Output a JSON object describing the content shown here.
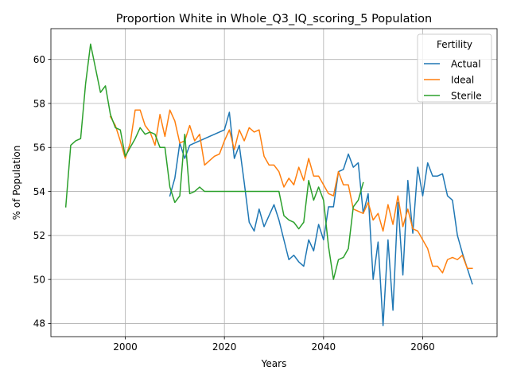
{
  "chart_data": {
    "type": "line",
    "title": "Proportion White in Whole_Q3_IQ_scoring_5 Population",
    "xlabel": "Years",
    "ylabel": "% of Population",
    "xlim": [
      1985,
      2075
    ],
    "ylim": [
      47.4,
      61.4
    ],
    "xticks": [
      2000,
      2020,
      2040,
      2060
    ],
    "yticks": [
      48,
      50,
      52,
      54,
      56,
      58,
      60
    ],
    "grid": true,
    "legend": {
      "title": "Fertility",
      "placement": "top-right"
    },
    "series": [
      {
        "name": "Actual",
        "color": "#1f77b4",
        "x": [
          2009,
          2010,
          2011,
          2012,
          2013,
          2014,
          2015,
          2016,
          2017,
          2018,
          2019,
          2020,
          2021,
          2022,
          2023,
          2024,
          2025,
          2026,
          2027,
          2028,
          2029,
          2030,
          2031,
          2032,
          2033,
          2034,
          2035,
          2036,
          2037,
          2038,
          2039,
          2040,
          2041,
          2042,
          2043,
          2044,
          2045,
          2046,
          2047,
          2048,
          2049,
          2050,
          2051,
          2052,
          2053,
          2054,
          2055,
          2056,
          2057,
          2058,
          2059,
          2060,
          2061,
          2062,
          2063,
          2064,
          2065,
          2066,
          2067,
          2068,
          2069,
          2070
        ],
        "values": [
          53.8,
          54.6,
          56.2,
          55.5,
          56.1,
          56.2,
          56.3,
          56.4,
          56.5,
          56.6,
          56.7,
          56.8,
          57.6,
          55.5,
          56.1,
          54.4,
          52.6,
          52.2,
          53.2,
          52.4,
          52.9,
          53.4,
          52.7,
          51.8,
          50.9,
          51.1,
          50.8,
          50.6,
          51.8,
          51.3,
          52.5,
          51.8,
          53.3,
          53.3,
          54.9,
          55.0,
          55.7,
          55.1,
          55.3,
          53.0,
          53.9,
          50.0,
          51.7,
          47.9,
          51.8,
          48.6,
          53.5,
          50.2,
          54.5,
          52.1,
          55.1,
          53.8,
          55.3,
          54.7,
          54.7,
          54.8,
          53.8,
          53.6,
          52.0,
          51.2,
          50.5,
          49.8
        ]
      },
      {
        "name": "Ideal",
        "color": "#ff7f0e",
        "x": [
          1997,
          1998,
          1999,
          2000,
          2001,
          2002,
          2003,
          2004,
          2005,
          2006,
          2007,
          2008,
          2009,
          2010,
          2011,
          2012,
          2013,
          2014,
          2015,
          2016,
          2017,
          2018,
          2019,
          2020,
          2021,
          2022,
          2023,
          2024,
          2025,
          2026,
          2027,
          2028,
          2029,
          2030,
          2031,
          2032,
          2033,
          2034,
          2035,
          2036,
          2037,
          2038,
          2039,
          2040,
          2041,
          2042,
          2043,
          2044,
          2045,
          2046,
          2047,
          2048,
          2049,
          2050,
          2051,
          2052,
          2053,
          2054,
          2055,
          2056,
          2057,
          2058,
          2059,
          2060,
          2061,
          2062,
          2063,
          2064,
          2065,
          2066,
          2067,
          2068,
          2069,
          2070
        ],
        "values": [
          57.4,
          57.0,
          56.3,
          55.5,
          56.2,
          57.7,
          57.7,
          57.0,
          56.7,
          56.1,
          57.5,
          56.5,
          57.7,
          57.2,
          56.2,
          56.3,
          57.0,
          56.3,
          56.6,
          55.2,
          55.4,
          55.6,
          55.7,
          56.3,
          56.8,
          55.9,
          56.8,
          56.3,
          56.9,
          56.7,
          56.8,
          55.6,
          55.2,
          55.2,
          54.9,
          54.2,
          54.6,
          54.3,
          55.1,
          54.5,
          55.5,
          54.7,
          54.7,
          54.3,
          53.9,
          53.8,
          54.9,
          54.3,
          54.3,
          53.2,
          53.1,
          53.0,
          53.5,
          52.7,
          53.0,
          52.2,
          53.4,
          52.5,
          53.8,
          52.4,
          53.2,
          52.3,
          52.2,
          51.8,
          51.4,
          50.6,
          50.6,
          50.3,
          50.9,
          51.0,
          50.9,
          51.1,
          50.5,
          50.5
        ]
      },
      {
        "name": "Sterile",
        "color": "#2ca02c",
        "x": [
          1988,
          1989,
          1990,
          1991,
          1992,
          1993,
          1994,
          1995,
          1996,
          1997,
          1998,
          1999,
          2000,
          2001,
          2002,
          2003,
          2004,
          2005,
          2006,
          2007,
          2008,
          2009,
          2010,
          2011,
          2012,
          2013,
          2014,
          2015,
          2016,
          2017,
          2018,
          2019,
          2020,
          2021,
          2022,
          2023,
          2024,
          2025,
          2026,
          2027,
          2028,
          2029,
          2030,
          2031,
          2032,
          2033,
          2034,
          2035,
          2036,
          2037,
          2038,
          2039,
          2040,
          2041,
          2042,
          2043,
          2044,
          2045,
          2046,
          2047,
          2048
        ],
        "values": [
          53.3,
          56.1,
          56.3,
          56.4,
          58.9,
          60.7,
          59.6,
          58.5,
          58.8,
          57.5,
          56.9,
          56.8,
          55.6,
          56.0,
          56.4,
          56.9,
          56.6,
          56.7,
          56.6,
          56.0,
          56.0,
          54.2,
          53.5,
          53.8,
          56.6,
          53.9,
          54.0,
          54.2,
          54.0,
          54.0,
          54.0,
          54.0,
          54.0,
          54.0,
          54.0,
          54.0,
          54.0,
          54.0,
          54.0,
          54.0,
          54.0,
          54.0,
          54.0,
          54.0,
          52.9,
          52.7,
          52.6,
          52.3,
          52.6,
          54.5,
          53.6,
          54.2,
          53.6,
          51.5,
          50.0,
          50.9,
          51.0,
          51.4,
          53.3,
          53.6,
          54.4
        ]
      }
    ]
  }
}
